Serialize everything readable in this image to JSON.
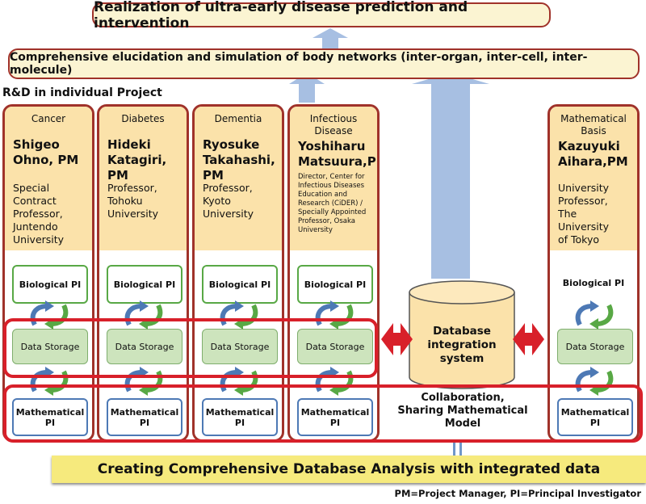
{
  "top_goal": "Realization of ultra-early disease prediction and intervention",
  "elucidation": "Comprehensive elucidation and simulation of body networks (inter-organ, inter-cell, inter-molecule)",
  "rd_label": "R&D in individual Project",
  "projects": [
    {
      "field_lines": [
        "Cancer"
      ],
      "pm_lines": [
        "Shigeo",
        "Ohno, PM"
      ],
      "affil_lines": [
        "Special",
        "Contract",
        "Professor,",
        "Juntendo",
        "University"
      ],
      "small": false
    },
    {
      "field_lines": [
        "Diabetes"
      ],
      "pm_lines": [
        "Hideki",
        "Katagiri, PM"
      ],
      "affil_lines": [
        "Professor,",
        "Tohoku",
        "University"
      ],
      "small": false
    },
    {
      "field_lines": [
        "Dementia"
      ],
      "pm_lines": [
        "Ryosuke",
        "Takahashi, PM"
      ],
      "affil_lines": [
        "Professor,",
        "Kyoto",
        "University"
      ],
      "small": false
    },
    {
      "field_lines": [
        "Infectious",
        "Disease"
      ],
      "pm_lines": [
        "Yoshiharu",
        "Matsuura,PM"
      ],
      "affil_lines": [
        "Director, Center for",
        "Infectious Diseases",
        "Education and",
        "Research (CiDER) /",
        "Specially Appointed",
        "Professor, Osaka",
        "University"
      ],
      "small": true
    },
    {
      "field_lines": [
        "Mathematical",
        "Basis"
      ],
      "pm_lines": [
        "Kazuyuki",
        "Aihara,PM"
      ],
      "affil_lines": [
        "University",
        "Professor,",
        "The",
        "University",
        "of Tokyo"
      ],
      "small": false
    }
  ],
  "bio_pi": "Biological PI",
  "data_storage": "Data Storage",
  "math_pi_lines": [
    "Mathematical",
    "PI"
  ],
  "db_lines": [
    "Database",
    "integration",
    "system"
  ],
  "collab_lines": [
    "Collaboration,",
    "Sharing Mathematical",
    "Model"
  ],
  "bottom": "Creating Comprehensive Database Analysis with integrated data",
  "footnote": "PM=Project Manager,  PI=Principal Investigator",
  "colors": {
    "dark_red": "#a0322a",
    "red": "#d8202a",
    "cream": "#fbe2aa",
    "green": "#58a845",
    "blue": "#4d79b5",
    "arrow_blue": "#a7bfe2",
    "yellow": "#f6ea7d"
  }
}
